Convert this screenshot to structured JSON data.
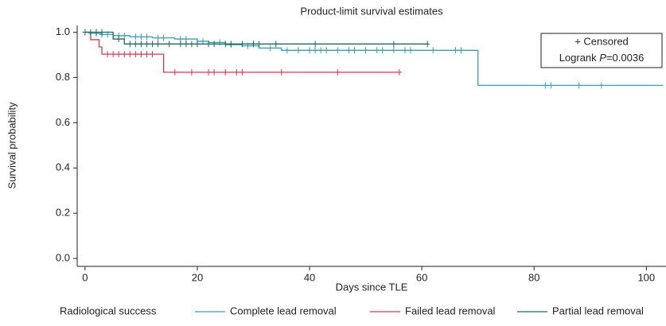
{
  "chart_data": {
    "type": "survival",
    "title": "Product-limit survival estimates",
    "x_label": "Days since TLE",
    "y_label": "Survival probability",
    "xlim": [
      -1.4,
      103.5
    ],
    "ylim": [
      -0.035,
      1.03
    ],
    "xticks": [
      0,
      20,
      40,
      60,
      80,
      100
    ],
    "yticks": [
      {
        "value": 0,
        "label": "0.0"
      },
      0.2,
      0.4,
      0.6,
      0.8,
      {
        "value": 1,
        "label": "1.0"
      }
    ],
    "legend_title": "Radiological success",
    "censored_note": "+ Censored",
    "logrank": {
      "prefix": "Logrank ",
      "symbol": "P",
      "value": "=0.0036"
    },
    "series": [
      {
        "name": "Complete lead removal",
        "color": "#3a9fb3",
        "x": [
          0,
          1,
          3,
          5,
          8,
          12,
          16,
          20,
          22,
          25,
          28,
          31,
          35,
          70,
          103
        ],
        "values": [
          1.0,
          0.995,
          0.99,
          0.985,
          0.98,
          0.975,
          0.97,
          0.96,
          0.955,
          0.945,
          0.94,
          0.93,
          0.92,
          0.765,
          0.765
        ],
        "censored_x": [
          1,
          2,
          3,
          4,
          6,
          7,
          9,
          10,
          11,
          13,
          14,
          17,
          18,
          21,
          24,
          26,
          29,
          33,
          36,
          38,
          40,
          41,
          42,
          43,
          45,
          47,
          48,
          50,
          52,
          53,
          55,
          57,
          58,
          62,
          66,
          67,
          82,
          83,
          88,
          92
        ],
        "censored_values": [
          0.995,
          0.995,
          0.99,
          0.99,
          0.985,
          0.985,
          0.98,
          0.98,
          0.98,
          0.975,
          0.975,
          0.97,
          0.97,
          0.96,
          0.955,
          0.945,
          0.94,
          0.93,
          0.92,
          0.92,
          0.92,
          0.92,
          0.92,
          0.92,
          0.92,
          0.92,
          0.92,
          0.92,
          0.92,
          0.92,
          0.92,
          0.92,
          0.92,
          0.92,
          0.92,
          0.92,
          0.765,
          0.765,
          0.765,
          0.765
        ]
      },
      {
        "name": "Failed lead removal",
        "color": "#e0344f",
        "x": [
          0,
          1,
          2.5,
          3,
          14,
          56
        ],
        "values": [
          1.0,
          0.967,
          0.935,
          0.903,
          0.823,
          0.823
        ],
        "censored_x": [
          4,
          5,
          6,
          7,
          8,
          9,
          10,
          11,
          12,
          16,
          19,
          22,
          23,
          25,
          27,
          28,
          35,
          45,
          56
        ],
        "censored_values": [
          0.903,
          0.903,
          0.903,
          0.903,
          0.903,
          0.903,
          0.903,
          0.903,
          0.903,
          0.823,
          0.823,
          0.823,
          0.823,
          0.823,
          0.823,
          0.823,
          0.823,
          0.823,
          0.823
        ]
      },
      {
        "name": "Partial lead removal",
        "color": "#1e6b5f",
        "x": [
          0,
          5,
          7,
          61
        ],
        "values": [
          1.0,
          0.97,
          0.948,
          0.948
        ],
        "censored_x": [
          0,
          1,
          2,
          3,
          6,
          8,
          9,
          10,
          11,
          12,
          13,
          15,
          17,
          18,
          19,
          20,
          22,
          23,
          25,
          26,
          28,
          30,
          31,
          34,
          41,
          55,
          61
        ],
        "censored_values": [
          1.0,
          1.0,
          1.0,
          1.0,
          0.97,
          0.948,
          0.948,
          0.948,
          0.948,
          0.948,
          0.948,
          0.948,
          0.948,
          0.948,
          0.948,
          0.948,
          0.948,
          0.948,
          0.948,
          0.948,
          0.948,
          0.948,
          0.948,
          0.948,
          0.948,
          0.948,
          0.948
        ]
      }
    ]
  }
}
